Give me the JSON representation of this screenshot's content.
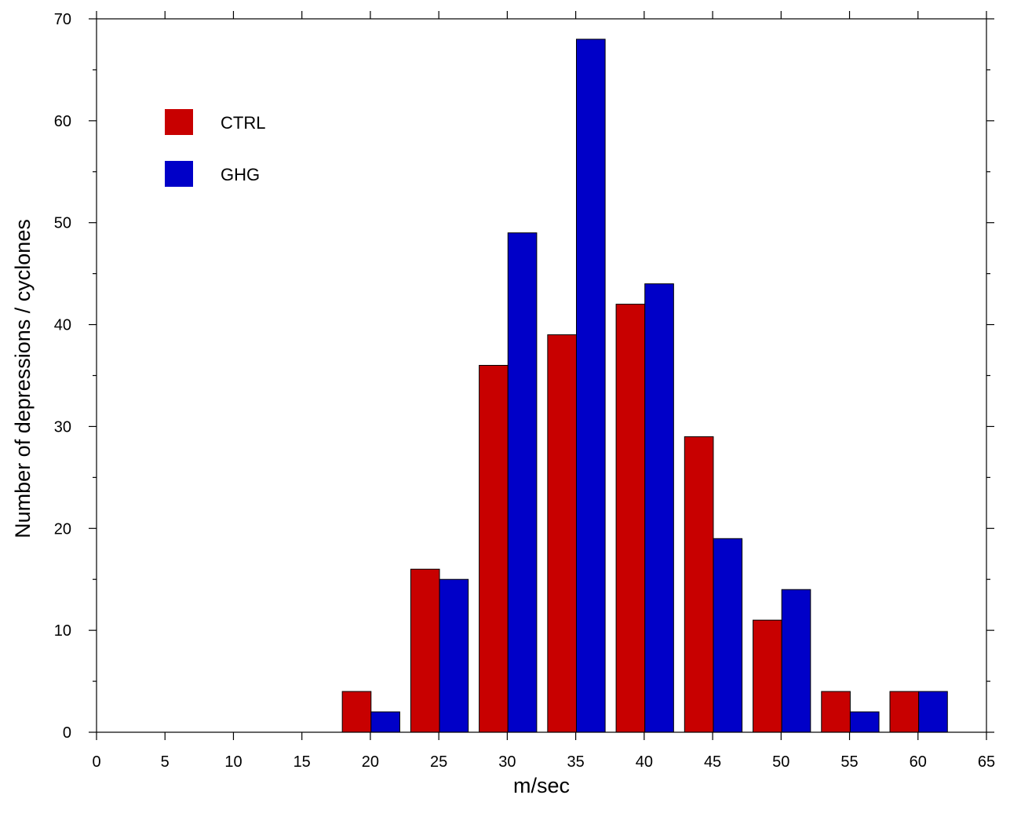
{
  "chart_data": {
    "type": "bar",
    "title": "",
    "xlabel": "m/sec",
    "ylabel": "Number of depressions / cyclones",
    "xlim": [
      0,
      65
    ],
    "ylim": [
      0,
      70
    ],
    "xticks": [
      0,
      5,
      10,
      15,
      20,
      25,
      30,
      35,
      40,
      45,
      50,
      55,
      60,
      65
    ],
    "yticks": [
      0,
      10,
      20,
      30,
      40,
      50,
      60,
      70
    ],
    "grid": false,
    "legend_position": "top-left",
    "bin_centers": [
      15,
      20,
      25,
      30,
      35,
      40,
      45,
      50,
      55,
      60
    ],
    "series": [
      {
        "name": "CTRL",
        "color": "#c80000",
        "values": [
          0,
          4,
          16,
          36,
          39,
          42,
          29,
          11,
          4,
          4
        ]
      },
      {
        "name": "GHG",
        "color": "#0000c8",
        "values": [
          0,
          2,
          15,
          49,
          68,
          44,
          19,
          14,
          2,
          4
        ]
      }
    ]
  }
}
